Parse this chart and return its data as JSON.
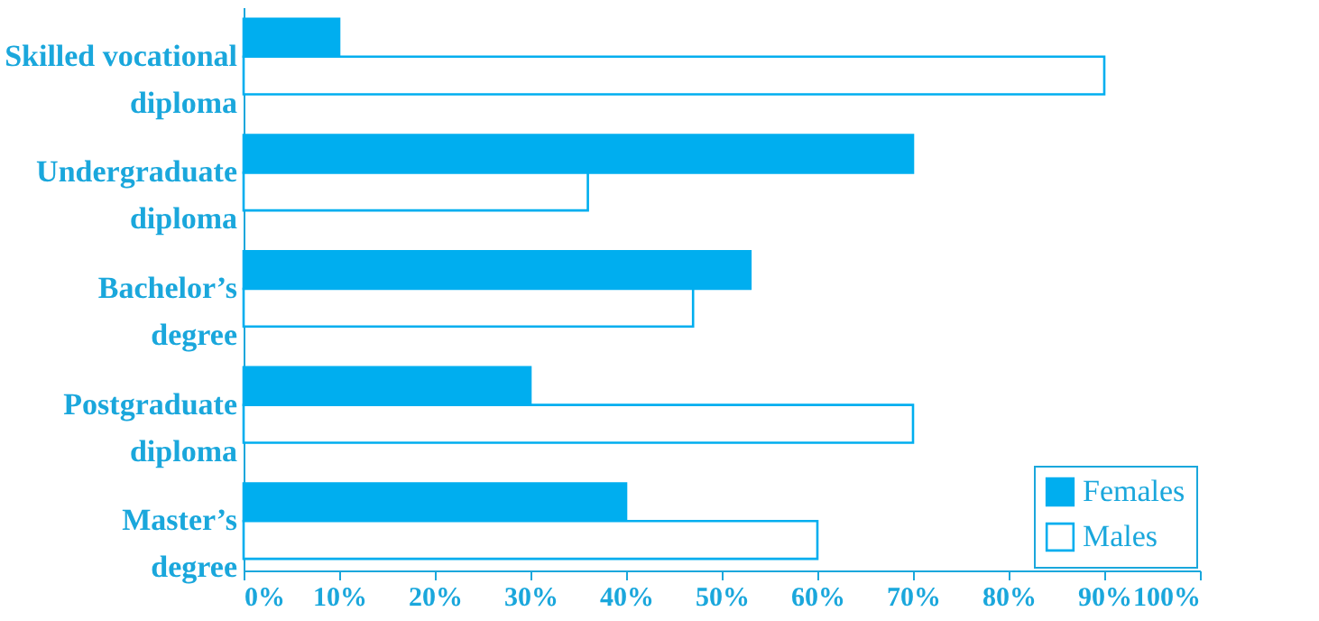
{
  "chart_data": {
    "type": "bar",
    "orientation": "horizontal",
    "categories": [
      "Skilled vocational\ndiploma",
      "Undergraduate\ndiploma",
      "Bachelor’s\ndegree",
      "Postgraduate\ndiploma",
      "Master’s\ndegree"
    ],
    "series": [
      {
        "name": "Females",
        "color": "#00aeef",
        "values": [
          10,
          70,
          53,
          30,
          40
        ]
      },
      {
        "name": "Males",
        "color": "#ffffff",
        "values": [
          90,
          36,
          47,
          70,
          60
        ]
      }
    ],
    "xlim": [
      0,
      100
    ],
    "xticks": [
      {
        "value": 0,
        "label": "0%"
      },
      {
        "value": 10,
        "label": "10%"
      },
      {
        "value": 20,
        "label": "20%"
      },
      {
        "value": 30,
        "label": "30%"
      },
      {
        "value": 40,
        "label": "40%"
      },
      {
        "value": 50,
        "label": "50%"
      },
      {
        "value": 60,
        "label": "60%"
      },
      {
        "value": 70,
        "label": "70%"
      },
      {
        "value": 80,
        "label": "80%"
      },
      {
        "value": 90,
        "label": "90%"
      },
      {
        "value": 100,
        "label": "100%"
      }
    ],
    "grid": false,
    "legend": "bottom right"
  }
}
